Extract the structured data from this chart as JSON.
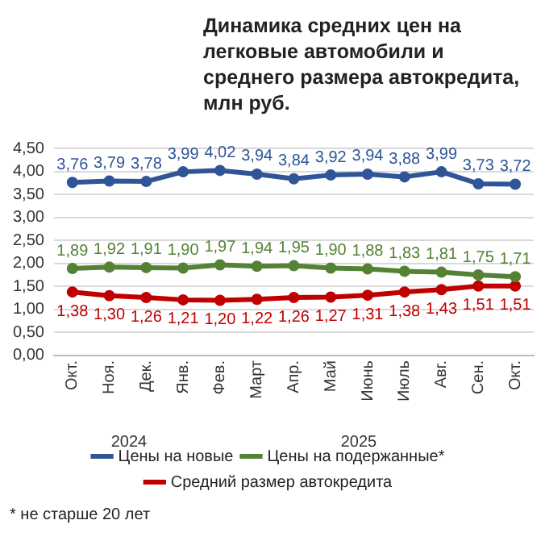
{
  "chart_data": {
    "type": "line",
    "title": "Динамика средних цен на легковые автомобили и среднего размера автокредита, млн руб.",
    "categories": [
      "Окт.",
      "Ноя.",
      "Дек.",
      "Янв.",
      "Фев.",
      "Март",
      "Апр.",
      "Май",
      "Июнь",
      "Июль",
      "Авг.",
      "Сен.",
      "Окт."
    ],
    "series": [
      {
        "name": "Цены на новые",
        "color": "#2f5597",
        "values": [
          3.76,
          3.79,
          3.78,
          3.99,
          4.02,
          3.94,
          3.84,
          3.92,
          3.94,
          3.88,
          3.99,
          3.73,
          3.72
        ],
        "value_labels": [
          "3,76",
          "3,79",
          "3,78",
          "3,99",
          "4,02",
          "3,94",
          "3,84",
          "3,92",
          "3,94",
          "3,88",
          "3,99",
          "3,73",
          "3,72"
        ]
      },
      {
        "name": "Цены на подержанные*",
        "color": "#548235",
        "values": [
          1.89,
          1.92,
          1.91,
          1.9,
          1.97,
          1.94,
          1.95,
          1.9,
          1.88,
          1.83,
          1.81,
          1.75,
          1.71
        ],
        "value_labels": [
          "1,89",
          "1,92",
          "1,91",
          "1,90",
          "1,97",
          "1,94",
          "1,95",
          "1,90",
          "1,88",
          "1,83",
          "1,81",
          "1,75",
          "1,71"
        ]
      },
      {
        "name": "Средний размер автокредита",
        "color": "#c00000",
        "values": [
          1.38,
          1.3,
          1.26,
          1.21,
          1.2,
          1.22,
          1.26,
          1.27,
          1.31,
          1.38,
          1.43,
          1.51,
          1.51
        ],
        "value_labels": [
          "1,38",
          "1,30",
          "1,26",
          "1,21",
          "1,20",
          "1,22",
          "1,26",
          "1,27",
          "1,31",
          "1,38",
          "1,43",
          "1,51",
          "1,51"
        ]
      }
    ],
    "ylim": [
      0,
      4.5
    ],
    "yticks": [
      {
        "value": 0,
        "label": "0,00"
      },
      {
        "value": 0.5,
        "label": "0,50"
      },
      {
        "value": 1,
        "label": "1,00"
      },
      {
        "value": 1.5,
        "label": "1,50"
      },
      {
        "value": 2,
        "label": "2,00"
      },
      {
        "value": 2.5,
        "label": "2,50"
      },
      {
        "value": 3,
        "label": "3,00"
      },
      {
        "value": 3.5,
        "label": "3,50"
      },
      {
        "value": 4,
        "label": "4,00"
      },
      {
        "value": 4.5,
        "label": "4,50"
      }
    ],
    "grid": "y",
    "legend": "bottom",
    "marker": "circle",
    "line_style": "solid",
    "annotations": [
      "2024",
      "2025",
      "* не старше 20 лет"
    ]
  }
}
